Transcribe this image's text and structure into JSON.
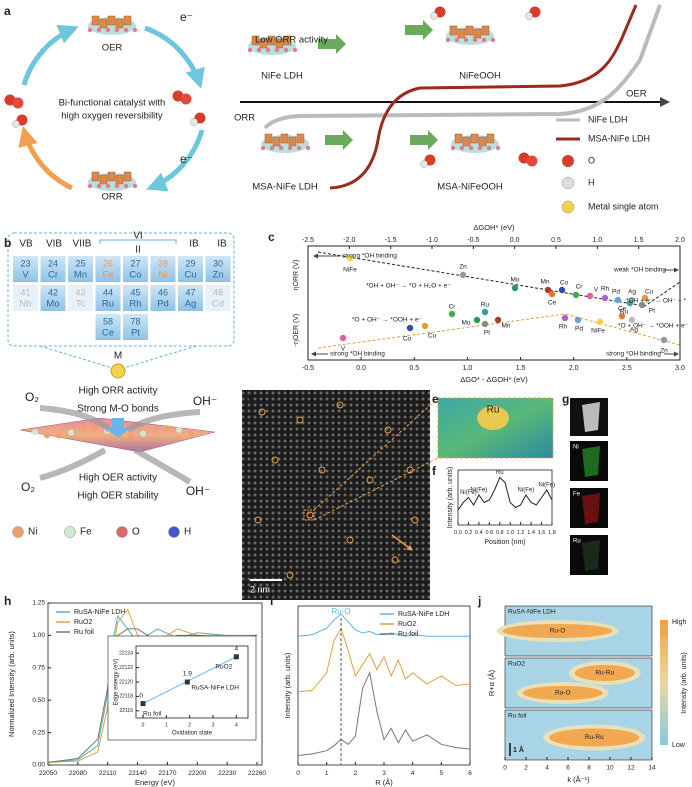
{
  "panel_labels": [
    "a",
    "b",
    "c",
    "d",
    "e",
    "f",
    "g",
    "h",
    "i",
    "j"
  ],
  "a": {
    "texts": [
      "OER",
      "Bi-functional catalyst with",
      "high oxygen reversibility",
      "ORR",
      "e⁻",
      "e⁻",
      "Low ORR activity",
      "NiFe LDH",
      "NiFeOOH",
      "ORR",
      "OER",
      "MSA-NiFe LDH",
      "MSA-NiFeOOH"
    ],
    "legend": [
      {
        "name": "NiFe LDH",
        "color": "#bbbbbb"
      },
      {
        "name": "MSA-NiFe LDH",
        "color": "#9b2a1a"
      },
      {
        "name": "O",
        "color": "#d93a2a"
      },
      {
        "name": "H",
        "color": "#dddddd"
      },
      {
        "name": "Metal single atom",
        "color": "#f2d24a"
      }
    ]
  },
  "b": {
    "groups": [
      "VB",
      "VIB",
      "VIIB",
      "VI",
      "II",
      "IB",
      "IB"
    ],
    "elements": [
      [
        "23",
        "V"
      ],
      [
        "24",
        "Cr"
      ],
      [
        "25",
        "Mn"
      ],
      [
        "26",
        "Fe"
      ],
      [
        "27",
        "Co"
      ],
      [
        "28",
        "Ni"
      ],
      [
        "29",
        "Cu"
      ],
      [
        "30",
        "Zn"
      ],
      [
        "41",
        "Nb"
      ],
      [
        "42",
        "Mo"
      ],
      [
        "43",
        "Tc"
      ],
      [
        "44",
        "Ru"
      ],
      [
        "45",
        "Rh"
      ],
      [
        "46",
        "Pd"
      ],
      [
        "47",
        "Ag"
      ],
      [
        "48",
        "Cd"
      ],
      [
        "58",
        "Ce"
      ],
      [
        "78",
        "Pt"
      ]
    ],
    "texts": [
      "M",
      "High ORR activity",
      "Strong M-O bonds",
      "O₂",
      "OH⁻",
      "O₂",
      "OH⁻",
      "High OER activity",
      "High OER stability"
    ],
    "legend": [
      {
        "name": "Ni",
        "color": "#f0a070"
      },
      {
        "name": "Fe",
        "color": "#cfe8d2"
      },
      {
        "name": "O",
        "color": "#d96a6a"
      },
      {
        "name": "H",
        "color": "#4455cc"
      }
    ]
  },
  "c": {
    "top_axis_label": "ΔGOH* (eV)",
    "top_lim": [
      -2.5,
      2.0
    ],
    "top_ticks": [
      -2.5,
      {
        "value": -2,
        "label": "-2.0"
      },
      -1.5,
      {
        "value": -1,
        "label": "-1.0"
      },
      -0.5,
      {
        "value": 0,
        "label": "0.0"
      },
      0.5,
      {
        "value": 1,
        "label": "1.0"
      },
      1.5,
      {
        "value": 2,
        "label": "2.0"
      }
    ],
    "bottom_axis_label": "ΔGO* - ΔGOH* (eV)",
    "bottom_lim": [
      -0.5,
      3.0
    ],
    "bottom_ticks": [
      -0.5,
      {
        "value": 0,
        "label": "0.0"
      },
      0.5,
      {
        "value": 1,
        "label": "1.0"
      },
      1.5,
      {
        "value": 2,
        "label": "2.0"
      },
      2.5,
      {
        "value": 3,
        "label": "3.0"
      }
    ],
    "y_labels": [
      "ηORR (V)",
      "-ηOER (V)"
    ],
    "annotations": [
      "strong *OH binding",
      "weak *OH binding",
      "*OH + OH⁻ → *O + H₂O + e⁻",
      "*O + OH⁻ → *OOH + e⁻",
      "*O + OH⁻ → *OOH + e⁻",
      "*OH + e⁻ → OH⁻ + *",
      "strong *OH binding",
      "strong *OH binding"
    ],
    "orr_points": [
      {
        "label": "NiFe",
        "color": "#f2d24a"
      },
      {
        "label": "Zn",
        "color": "#999999"
      },
      {
        "label": "Mo",
        "color": "#2a9a5a"
      },
      {
        "label": "Mn",
        "color": "#b03a2a"
      },
      {
        "label": "Ce",
        "color": "#e07a30"
      },
      {
        "label": "Co",
        "color": "#3a4ab0"
      },
      {
        "label": "Cr",
        "color": "#3ab04a"
      },
      {
        "label": "V",
        "color": "#e060a0"
      },
      {
        "label": "Rh",
        "color": "#b060d0"
      },
      {
        "label": "Pd",
        "color": "#6aa0e0"
      },
      {
        "label": "Ag",
        "color": "#bbbbbb"
      },
      {
        "label": "Cu",
        "color": "#e0a030"
      },
      {
        "label": "Ru",
        "color": "#30a0a0"
      },
      {
        "label": "Pt",
        "color": "#8a8a8a"
      }
    ],
    "oer_points": [
      {
        "label": "V",
        "color": "#e060a0"
      },
      {
        "label": "Co",
        "color": "#3a4ab0"
      },
      {
        "label": "Cu",
        "color": "#e0a030"
      },
      {
        "label": "Cr",
        "color": "#3ab04a"
      },
      {
        "label": "Ru",
        "color": "#30a0a0"
      },
      {
        "label": "Mo",
        "color": "#2a9a5a"
      },
      {
        "label": "Pt",
        "color": "#8a8a8a"
      },
      {
        "label": "Mn",
        "color": "#b03a2a"
      },
      {
        "label": "Rh",
        "color": "#b060d0"
      },
      {
        "label": "Pd",
        "color": "#6aa0e0"
      },
      {
        "label": "NiFe",
        "color": "#f2d24a"
      },
      {
        "label": "Ce",
        "color": "#e07a30"
      },
      {
        "label": "Ag",
        "color": "#bbbbbb"
      },
      {
        "label": "Zn",
        "color": "#999999"
      }
    ]
  },
  "d": {
    "scale": "2 nm"
  },
  "e": {
    "label": "Ru"
  },
  "g": {
    "labels": [
      "Ni",
      "Fe",
      "Ru"
    ]
  },
  "j": {
    "xlim": [
      0,
      14
    ],
    "xticks": [
      0,
      2,
      4,
      6,
      8,
      10,
      12,
      14
    ],
    "x_label": "k (Å⁻¹)",
    "y_label": "R+α (Å)",
    "panels": [
      {
        "name": "RuSA-NiFe LDH",
        "peaks": [
          "Ru-O"
        ]
      },
      {
        "name": "RuO2",
        "peaks": [
          "Ru-Ru",
          "Ru-O"
        ]
      },
      {
        "name": "Ru foil",
        "peaks": [
          "Ru-Ru"
        ]
      }
    ],
    "colorbar": [
      "High",
      "Low"
    ],
    "colorbar_label": "Intensity (arb. units)",
    "scale": "1 Å"
  },
  "chart_data": [
    {
      "type": "line",
      "x_label": "Position (nm)",
      "y_label": "Intensity (arb. units)",
      "x": [
        0,
        0.1,
        0.2,
        0.3,
        0.4,
        0.5,
        0.6,
        0.7,
        0.8,
        0.9,
        1.0,
        1.1,
        1.2,
        1.3,
        1.4,
        1.5,
        1.6,
        1.7,
        1.8
      ],
      "values": [
        0.3,
        0.45,
        0.55,
        0.4,
        0.6,
        0.45,
        0.5,
        0.7,
        0.95,
        0.85,
        0.45,
        0.35,
        0.4,
        0.6,
        0.45,
        0.4,
        0.55,
        0.7,
        0.5
      ],
      "color": "#222222",
      "xlim": [
        0,
        1.8
      ],
      "ylim": [
        0,
        1.1
      ],
      "xticks": [
        {
          "value": 0,
          "label": "0.0"
        },
        0.2,
        0.4,
        0.6,
        0.8,
        {
          "value": 1,
          "label": "1.0"
        },
        1.2,
        1.4,
        1.6,
        1.8
      ],
      "annotations": [
        "Ni(Fe)",
        "Ni(Fe)",
        "Ru",
        "Ni(Fe)",
        "Ni(Fe)"
      ]
    },
    {
      "type": "line",
      "x_label": "Energy (eV)",
      "y_label": "Normalized Intensity (arb. units)",
      "x": [
        22050,
        22080,
        22100,
        22110,
        22115,
        22120,
        22130,
        22140,
        22160,
        22180,
        22200,
        22230,
        22260
      ],
      "series": [
        {
          "name": "RuSA-NiFe LDH",
          "color": "#55b0c8",
          "values": [
            0.02,
            0.04,
            0.15,
            0.55,
            0.95,
            1.15,
            1.05,
            0.95,
            1.05,
            0.98,
            1.02,
            1.0,
            1.0
          ]
        },
        {
          "name": "RuO2",
          "color": "#e0a040",
          "values": [
            0.02,
            0.03,
            0.1,
            0.45,
            0.85,
            1.1,
            1.2,
            1.0,
            0.95,
            1.05,
            1.0,
            1.0,
            1.0
          ]
        },
        {
          "name": "Ru foil",
          "color": "#777777",
          "values": [
            0.02,
            0.05,
            0.2,
            0.6,
            0.9,
            1.0,
            1.05,
            1.05,
            0.95,
            1.0,
            1.0,
            0.98,
            1.0
          ]
        }
      ],
      "xlim": [
        22050,
        22265
      ],
      "ylim": [
        0,
        1.25
      ],
      "xticks": [
        22050,
        22080,
        22110,
        22140,
        22170,
        22200,
        22230,
        22260
      ],
      "yticks": [
        {
          "value": 0,
          "label": "0.00"
        },
        {
          "value": 0.25,
          "label": "0.25"
        },
        {
          "value": 0.5,
          "label": "0.50"
        },
        {
          "value": 0.75,
          "label": "0.75"
        },
        {
          "value": 1,
          "label": "1.00"
        },
        {
          "value": 1.25,
          "label": "1.25"
        }
      ]
    },
    {
      "type": "scatter",
      "x_label": "Oxidation state",
      "y_label": "Edge energy (eV)",
      "x": [
        0,
        1.9,
        4
      ],
      "values": [
        22117,
        22120,
        22123.5
      ],
      "names": [
        "Ru foil",
        "RuSA-NiFe LDH",
        "RuO2"
      ],
      "color": "#333333",
      "xlim": [
        -0.3,
        4.5
      ],
      "ylim": [
        22115,
        22125
      ],
      "xticks": [
        0,
        1,
        2,
        3,
        4
      ],
      "yticks": [
        22116,
        22118,
        22120,
        22122,
        22124
      ]
    },
    {
      "type": "line",
      "x_label": "R (Å)",
      "y_label": "Intensity (arb. units)",
      "peak_label": "Ru-O",
      "x": [
        0,
        0.5,
        1,
        1.25,
        1.5,
        1.75,
        2,
        2.25,
        2.5,
        2.75,
        3,
        3.25,
        3.5,
        3.75,
        4,
        4.5,
        5,
        5.5,
        6
      ],
      "series": [
        {
          "name": "RuSA-NiFe LDH",
          "color": "#5cb4e0",
          "values": [
            8.1,
            8.2,
            8.6,
            9.1,
            9.5,
            9.0,
            8.5,
            8.3,
            8.4,
            8.2,
            8.2,
            8.3,
            8.2,
            8.1,
            8.2,
            8.1,
            8.1,
            8.1,
            8.1
          ]
        },
        {
          "name": "RuO2",
          "color": "#e0a040",
          "values": [
            4.6,
            4.7,
            5.8,
            7.8,
            8.6,
            7.2,
            5.6,
            6.3,
            7.0,
            6.0,
            6.8,
            5.6,
            6.6,
            5.4,
            5.8,
            5.1,
            5.6,
            5.0,
            5.1
          ]
        },
        {
          "name": "Ru-foil",
          "color": "#777777",
          "values": [
            0.6,
            0.7,
            0.9,
            1.2,
            1.6,
            1.3,
            1.8,
            4.8,
            5.8,
            3.4,
            1.6,
            2.3,
            1.4,
            2.2,
            1.5,
            1.9,
            1.3,
            1.1,
            1.0
          ]
        }
      ],
      "xlim": [
        0,
        6
      ],
      "ylim": [
        0,
        10
      ],
      "xticks": [
        0,
        1,
        2,
        3,
        4,
        5,
        6
      ]
    }
  ]
}
